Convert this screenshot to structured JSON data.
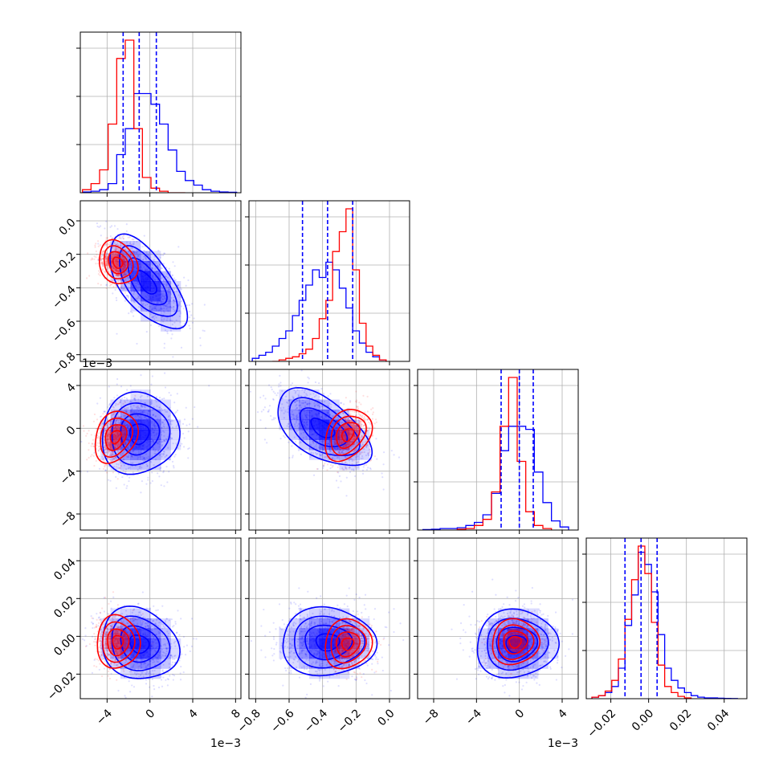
{
  "chart_data": {
    "type": "corner",
    "title": "",
    "grid": true,
    "colors": {
      "blue": "#0000ff",
      "red": "#ff0000",
      "grid": "#b0b0b0",
      "axis": "#000000"
    },
    "parameters": [
      {
        "index": 0,
        "range": [
          -0.0065,
          0.0085
        ],
        "ticks": [
          -0.004,
          0,
          0.004,
          0.008
        ],
        "tick_labels": [
          "−4",
          "0",
          "4",
          "8"
        ],
        "offset_label": "1e−3"
      },
      {
        "index": 1,
        "range": [
          -0.84,
          0.12
        ],
        "ticks": [
          -0.8,
          -0.6,
          -0.4,
          -0.2,
          0.0
        ],
        "tick_labels": [
          "−0.8",
          "−0.6",
          "−0.4",
          "−0.2",
          "0.0"
        ],
        "offset_label": ""
      },
      {
        "index": 2,
        "range": [
          -0.0095,
          0.0055
        ],
        "ticks": [
          -0.008,
          -0.004,
          0,
          0.004
        ],
        "tick_labels": [
          "−8",
          "−4",
          "0",
          "4"
        ],
        "offset_label": "1e−3"
      },
      {
        "index": 3,
        "range": [
          -0.033,
          0.052
        ],
        "ticks": [
          -0.02,
          0.0,
          0.02,
          0.04
        ],
        "tick_labels": [
          "−0.02",
          "0.00",
          "0.02",
          "0.04"
        ],
        "offset_label": ""
      }
    ],
    "histograms": [
      {
        "param": 0,
        "quantiles": [
          -0.0025,
          -0.001,
          0.0006
        ],
        "series": [
          {
            "name": "",
            "color": "blue",
            "bins": [
              -0.0063,
              -0.0055,
              -0.0047,
              -0.0039,
              -0.0031,
              -0.0023,
              -0.0015,
              -0.0007,
              0.0001,
              0.0009,
              0.0017,
              0.0025,
              0.0033,
              0.0041,
              0.0049,
              0.0057,
              0.0065,
              0.0073,
              0.0081
            ],
            "counts": [
              0.005,
              0.01,
              0.02,
              0.06,
              0.25,
              0.42,
              0.65,
              0.65,
              0.58,
              0.45,
              0.28,
              0.14,
              0.08,
              0.05,
              0.02,
              0.01,
              0.005,
              0.003
            ]
          },
          {
            "name": "",
            "color": "red",
            "bins": [
              -0.0063,
              -0.0055,
              -0.0047,
              -0.0039,
              -0.0031,
              -0.0023,
              -0.0015,
              -0.0007,
              0.0001,
              0.0009,
              0.0017,
              0.0025,
              0.0033
            ],
            "counts": [
              0.02,
              0.06,
              0.15,
              0.45,
              0.88,
              1.0,
              0.42,
              0.1,
              0.03,
              0.01,
              0.0,
              0.0
            ]
          }
        ]
      },
      {
        "param": 1,
        "quantiles": [
          -0.52,
          -0.37,
          -0.22
        ],
        "series": [
          {
            "name": "",
            "color": "blue",
            "bins": [
              -0.82,
              -0.78,
              -0.74,
              -0.7,
              -0.66,
              -0.62,
              -0.58,
              -0.54,
              -0.5,
              -0.46,
              -0.42,
              -0.38,
              -0.34,
              -0.3,
              -0.26,
              -0.22,
              -0.18,
              -0.14,
              -0.1,
              -0.06,
              -0.02
            ],
            "counts": [
              0.02,
              0.04,
              0.06,
              0.1,
              0.15,
              0.2,
              0.3,
              0.4,
              0.5,
              0.6,
              0.55,
              0.65,
              0.6,
              0.48,
              0.35,
              0.2,
              0.12,
              0.06,
              0.03,
              0.01
            ]
          },
          {
            "name": "",
            "color": "red",
            "bins": [
              -0.7,
              -0.66,
              -0.62,
              -0.58,
              -0.54,
              -0.5,
              -0.46,
              -0.42,
              -0.38,
              -0.34,
              -0.3,
              -0.26,
              -0.22,
              -0.18,
              -0.14,
              -0.1,
              -0.06,
              -0.02
            ],
            "counts": [
              0.0,
              0.01,
              0.02,
              0.03,
              0.05,
              0.08,
              0.15,
              0.28,
              0.4,
              0.72,
              0.85,
              1.0,
              0.6,
              0.25,
              0.1,
              0.04,
              0.01
            ]
          }
        ]
      },
      {
        "param": 2,
        "quantiles": [
          -0.0017,
          0.0,
          0.0013
        ],
        "series": [
          {
            "name": "",
            "color": "blue",
            "bins": [
              -0.009,
              -0.0082,
              -0.0074,
              -0.0066,
              -0.0058,
              -0.005,
              -0.0042,
              -0.0034,
              -0.0026,
              -0.0018,
              -0.001,
              -0.0002,
              0.0006,
              0.0014,
              0.0022,
              0.003,
              0.0038,
              0.0046
            ],
            "counts": [
              0.003,
              0.005,
              0.01,
              0.01,
              0.015,
              0.03,
              0.05,
              0.1,
              0.24,
              0.52,
              0.68,
              0.68,
              0.66,
              0.38,
              0.18,
              0.06,
              0.02
            ]
          },
          {
            "name": "",
            "color": "red",
            "bins": [
              -0.0058,
              -0.005,
              -0.0042,
              -0.0034,
              -0.0026,
              -0.0018,
              -0.001,
              -0.0002,
              0.0006,
              0.0014,
              0.0022,
              0.003
            ],
            "counts": [
              0.005,
              0.01,
              0.03,
              0.07,
              0.25,
              0.68,
              1.0,
              0.45,
              0.12,
              0.03,
              0.01
            ]
          }
        ]
      },
      {
        "param": 3,
        "quantiles": [
          -0.0125,
          -0.004,
          0.0045
        ],
        "series": [
          {
            "name": "",
            "color": "blue",
            "bins": [
              -0.03,
              -0.0265,
              -0.023,
              -0.0195,
              -0.016,
              -0.0125,
              -0.009,
              -0.0055,
              -0.002,
              0.0015,
              0.005,
              0.0085,
              0.012,
              0.0155,
              0.019,
              0.0225,
              0.026,
              0.0295,
              0.033,
              0.0365,
              0.04,
              0.0435,
              0.047
            ],
            "counts": [
              0.01,
              0.02,
              0.04,
              0.08,
              0.2,
              0.48,
              0.68,
              0.96,
              0.88,
              0.7,
              0.42,
              0.2,
              0.12,
              0.07,
              0.04,
              0.02,
              0.01,
              0.005,
              0.005,
              0.003,
              0.002,
              0.001
            ]
          },
          {
            "name": "",
            "color": "red",
            "bins": [
              -0.03,
              -0.0265,
              -0.023,
              -0.0195,
              -0.016,
              -0.0125,
              -0.009,
              -0.0055,
              -0.002,
              0.0015,
              0.005,
              0.0085,
              0.012,
              0.0155,
              0.019,
              0.0225
            ],
            "counts": [
              0.01,
              0.02,
              0.05,
              0.12,
              0.26,
              0.52,
              0.78,
              1.0,
              0.82,
              0.5,
              0.22,
              0.08,
              0.04,
              0.015,
              0.005
            ]
          }
        ]
      }
    ],
    "distributions_2d": [
      {
        "x_param": 0,
        "y_param": 1,
        "blue": {
          "mean": [
            -0.0003,
            -0.37
          ],
          "sd": [
            0.0018,
            0.14
          ],
          "corr": -0.65
        },
        "red": {
          "mean": [
            -0.003,
            -0.25
          ],
          "sd": [
            0.0009,
            0.065
          ],
          "corr": -0.2
        }
      },
      {
        "x_param": 0,
        "y_param": 2,
        "blue": {
          "mean": [
            -0.001,
            -0.0005
          ],
          "sd": [
            0.0018,
            0.0019
          ],
          "corr": 0.05
        },
        "red": {
          "mean": [
            -0.0032,
            -0.0008
          ],
          "sd": [
            0.001,
            0.0012
          ],
          "corr": 0.25
        }
      },
      {
        "x_param": 1,
        "y_param": 2,
        "blue": {
          "mean": [
            -0.4,
            0.0
          ],
          "sd": [
            0.14,
            0.0018
          ],
          "corr": -0.55
        },
        "red": {
          "mean": [
            -0.25,
            -0.0006
          ],
          "sd": [
            0.07,
            0.0012
          ],
          "corr": 0.3
        }
      },
      {
        "x_param": 0,
        "y_param": 3,
        "blue": {
          "mean": [
            -0.001,
            -0.004
          ],
          "sd": [
            0.0018,
            0.0095
          ],
          "corr": -0.15
        },
        "red": {
          "mean": [
            -0.003,
            -0.003
          ],
          "sd": [
            0.001,
            0.007
          ],
          "corr": 0.0
        }
      },
      {
        "x_param": 1,
        "y_param": 3,
        "blue": {
          "mean": [
            -0.37,
            -0.003
          ],
          "sd": [
            0.14,
            0.009
          ],
          "corr": 0.0
        },
        "red": {
          "mean": [
            -0.25,
            -0.004
          ],
          "sd": [
            0.07,
            0.0065
          ],
          "corr": 0.1
        }
      },
      {
        "x_param": 2,
        "y_param": 3,
        "blue": {
          "mean": [
            -0.0003,
            -0.004
          ],
          "sd": [
            0.0019,
            0.009
          ],
          "corr": 0.05
        },
        "red": {
          "mean": [
            -0.0004,
            -0.003
          ],
          "sd": [
            0.0011,
            0.006
          ],
          "corr": 0.05
        }
      }
    ],
    "contour_levels_sigma": [
      0.5,
      1.0,
      1.5,
      2.0
    ]
  }
}
